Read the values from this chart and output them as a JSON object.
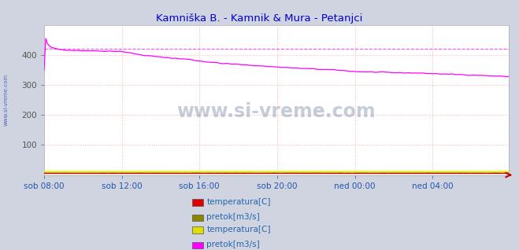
{
  "title": "Kamniška B. - Kamnik & Mura - Petanjci",
  "title_color": "#0000cc",
  "bg_color": "#d0d4e0",
  "plot_bg_color": "#ffffff",
  "ylim": [
    0,
    500
  ],
  "yticks": [
    100,
    200,
    300,
    400
  ],
  "grid_color": "#ffb0b0",
  "grid_linestyle": ":",
  "x_labels": [
    "sob 08:00",
    "sob 12:00",
    "sob 16:00",
    "sob 20:00",
    "ned 00:00",
    "ned 04:00"
  ],
  "x_positions": [
    0,
    48,
    96,
    144,
    192,
    240
  ],
  "n_points": 288,
  "mura_dashed": 420,
  "line_color_kamnik_temp": "#dd0000",
  "line_color_kamnik_pretok": "#888800",
  "line_color_mura_temp": "#ffff00",
  "line_color_mura_pretok": "#ff00ff",
  "watermark": "www.si-vreme.com",
  "watermark_color": "#1a3a6e",
  "watermark_alpha": 0.25,
  "legend_label_1": "temperatura[C]",
  "legend_label_2": "pretok[m3/s]",
  "legend_label_3": "temperatura[C]",
  "legend_label_4": "pretok[m3/s]",
  "legend_color_1": "#dd0000",
  "legend_color_2": "#888800",
  "legend_color_3": "#dddd00",
  "legend_color_4": "#ff00ff",
  "legend_text_color": "#2266aa",
  "sidebar_text": "www.si-vreme.com",
  "sidebar_color": "#2244aa"
}
